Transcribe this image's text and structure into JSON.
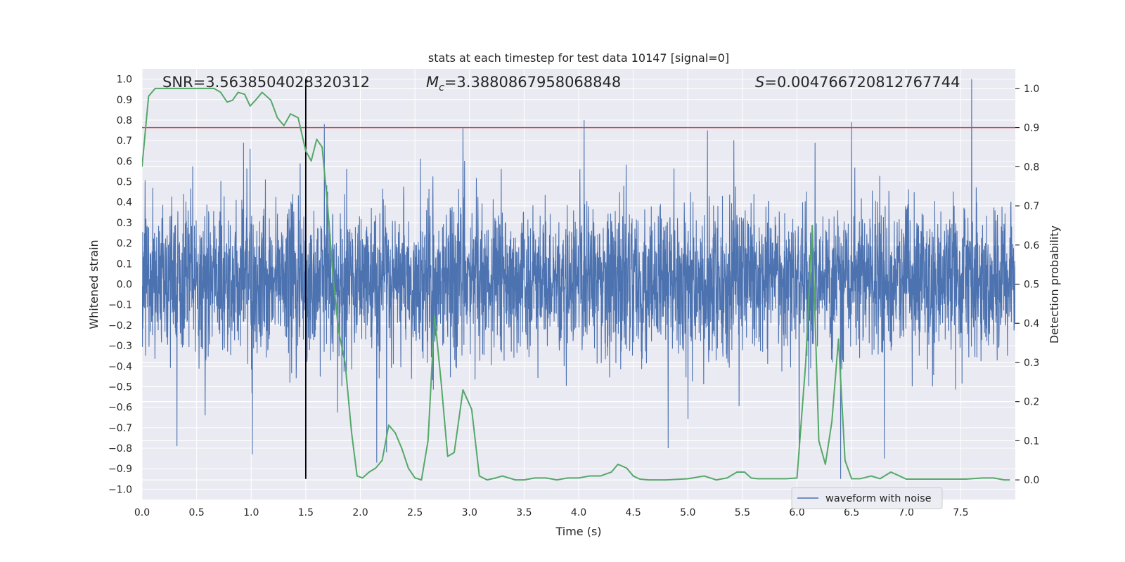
{
  "chart_data": {
    "type": "line",
    "title": "stats at each timestep for test data 10147 [signal=0]",
    "xlabel": "Time (s)",
    "ylabel_left": "Whitened strain",
    "ylabel_right": "Detection probability",
    "xlim": [
      0.0,
      8.0
    ],
    "ylim_left": [
      -1.05,
      1.05
    ],
    "ylim_right": [
      -0.05,
      1.05
    ],
    "x_ticks": [
      0.0,
      0.5,
      1.0,
      1.5,
      2.0,
      2.5,
      3.0,
      3.5,
      4.0,
      4.5,
      5.0,
      5.5,
      6.0,
      6.5,
      7.0,
      7.5
    ],
    "x_tick_labels": [
      "0.0",
      "0.5",
      "1.0",
      "1.5",
      "2.0",
      "2.5",
      "3.0",
      "3.5",
      "4.0",
      "4.5",
      "5.0",
      "5.5",
      "6.0",
      "6.5",
      "7.0",
      "7.5"
    ],
    "y_left_ticks": [
      -1.0,
      -0.9,
      -0.8,
      -0.7,
      -0.6,
      -0.5,
      -0.4,
      -0.3,
      -0.2,
      -0.1,
      0.0,
      0.1,
      0.2,
      0.3,
      0.4,
      0.5,
      0.6,
      0.7,
      0.8,
      0.9,
      1.0
    ],
    "y_left_tick_labels": [
      "−1.0",
      "−0.9",
      "−0.8",
      "−0.7",
      "−0.6",
      "−0.5",
      "−0.4",
      "−0.3",
      "−0.2",
      "−0.1",
      "0.0",
      "0.1",
      "0.2",
      "0.3",
      "0.4",
      "0.5",
      "0.6",
      "0.7",
      "0.8",
      "0.9",
      "1.0"
    ],
    "y_right_ticks": [
      0.0,
      0.1,
      0.2,
      0.3,
      0.4,
      0.5,
      0.6,
      0.7,
      0.8,
      0.9,
      1.0
    ],
    "y_right_tick_labels": [
      "0.0",
      "0.1",
      "0.2",
      "0.3",
      "0.4",
      "0.5",
      "0.6",
      "0.7",
      "0.8",
      "0.9",
      "1.0"
    ],
    "grid": true,
    "annotations": {
      "snr": "SNR=3.5638504028320312",
      "mc_symbol": "M",
      "mc_subscript": "c",
      "mc_value": "=3.3880867958068848",
      "s_symbol": "S",
      "s_value": "=0.004766720812767744"
    },
    "threshold": {
      "y_right": 0.9,
      "color": "#c44e52"
    },
    "marker_line": {
      "x": 1.5,
      "color": "#000000"
    },
    "legend": {
      "label": "waveform with noise",
      "location": "lower-right"
    },
    "series": [
      {
        "name": "waveform with noise",
        "axis": "left",
        "color": "#4c72b0",
        "kind": "dense noise trace",
        "x_range": [
          0.0,
          8.0
        ],
        "core_band": [
          -0.37,
          0.41
        ],
        "typical_peaks": [
          -0.55,
          0.6
        ],
        "extremes": {
          "max": {
            "x": 7.6,
            "y": 1.0
          },
          "min": {
            "x": 6.4,
            "y": -0.95
          }
        },
        "tall_spikes": [
          {
            "x": 0.93,
            "y": 0.69
          },
          {
            "x": 0.99,
            "y": 0.66
          },
          {
            "x": 1.01,
            "y": -0.83
          },
          {
            "x": 1.67,
            "y": 0.78
          },
          {
            "x": 2.15,
            "y": -0.87
          },
          {
            "x": 2.24,
            "y": -0.82
          },
          {
            "x": 2.94,
            "y": 0.76
          },
          {
            "x": 4.05,
            "y": 0.8
          },
          {
            "x": 4.82,
            "y": -0.8
          },
          {
            "x": 5.18,
            "y": 0.75
          },
          {
            "x": 6.02,
            "y": -0.83
          },
          {
            "x": 6.5,
            "y": 0.79
          },
          {
            "x": 6.8,
            "y": -0.85
          },
          {
            "x": 0.32,
            "y": -0.79
          }
        ]
      },
      {
        "name": "",
        "axis": "right",
        "color": "#55a868",
        "kind": "detection probability",
        "x": [
          0.0,
          0.06,
          0.12,
          0.2,
          0.3,
          0.4,
          0.5,
          0.6,
          0.66,
          0.72,
          0.78,
          0.83,
          0.88,
          0.94,
          0.99,
          1.04,
          1.1,
          1.18,
          1.24,
          1.3,
          1.36,
          1.43,
          1.5,
          1.55,
          1.6,
          1.65,
          1.7,
          1.75,
          1.8,
          1.86,
          1.92,
          1.97,
          2.02,
          2.08,
          2.14,
          2.2,
          2.26,
          2.32,
          2.38,
          2.44,
          2.5,
          2.56,
          2.62,
          2.68,
          2.74,
          2.8,
          2.86,
          2.94,
          3.02,
          3.09,
          3.16,
          3.24,
          3.3,
          3.36,
          3.42,
          3.5,
          3.6,
          3.7,
          3.8,
          3.9,
          4.0,
          4.1,
          4.2,
          4.3,
          4.36,
          4.44,
          4.5,
          4.56,
          4.64,
          4.8,
          5.0,
          5.15,
          5.26,
          5.36,
          5.45,
          5.52,
          5.58,
          5.64,
          5.7,
          5.8,
          5.9,
          6.0,
          6.08,
          6.14,
          6.2,
          6.26,
          6.32,
          6.38,
          6.44,
          6.5,
          6.58,
          6.68,
          6.76,
          6.86,
          6.94,
          7.0,
          7.06,
          7.2,
          7.4,
          7.55,
          7.7,
          7.8,
          7.9,
          7.95
        ],
        "y": [
          0.8,
          0.98,
          1.0,
          1.0,
          1.0,
          1.0,
          1.0,
          1.0,
          1.0,
          0.99,
          0.965,
          0.97,
          0.99,
          0.985,
          0.955,
          0.97,
          0.99,
          0.97,
          0.925,
          0.905,
          0.935,
          0.925,
          0.84,
          0.815,
          0.87,
          0.85,
          0.7,
          0.52,
          0.38,
          0.3,
          0.12,
          0.01,
          0.005,
          0.02,
          0.03,
          0.05,
          0.14,
          0.12,
          0.08,
          0.03,
          0.005,
          0.0,
          0.1,
          0.42,
          0.25,
          0.06,
          0.07,
          0.23,
          0.18,
          0.01,
          0.0,
          0.005,
          0.01,
          0.005,
          0.0,
          0.0,
          0.005,
          0.005,
          0.0,
          0.005,
          0.005,
          0.01,
          0.01,
          0.02,
          0.04,
          0.03,
          0.01,
          0.002,
          0.0,
          0.0,
          0.003,
          0.01,
          0.0,
          0.005,
          0.02,
          0.02,
          0.005,
          0.003,
          0.003,
          0.003,
          0.003,
          0.005,
          0.3,
          0.65,
          0.1,
          0.04,
          0.15,
          0.36,
          0.05,
          0.003,
          0.003,
          0.01,
          0.003,
          0.02,
          0.01,
          0.002,
          0.002,
          0.002,
          0.002,
          0.002,
          0.005,
          0.005,
          0.0,
          0.0
        ]
      }
    ]
  }
}
